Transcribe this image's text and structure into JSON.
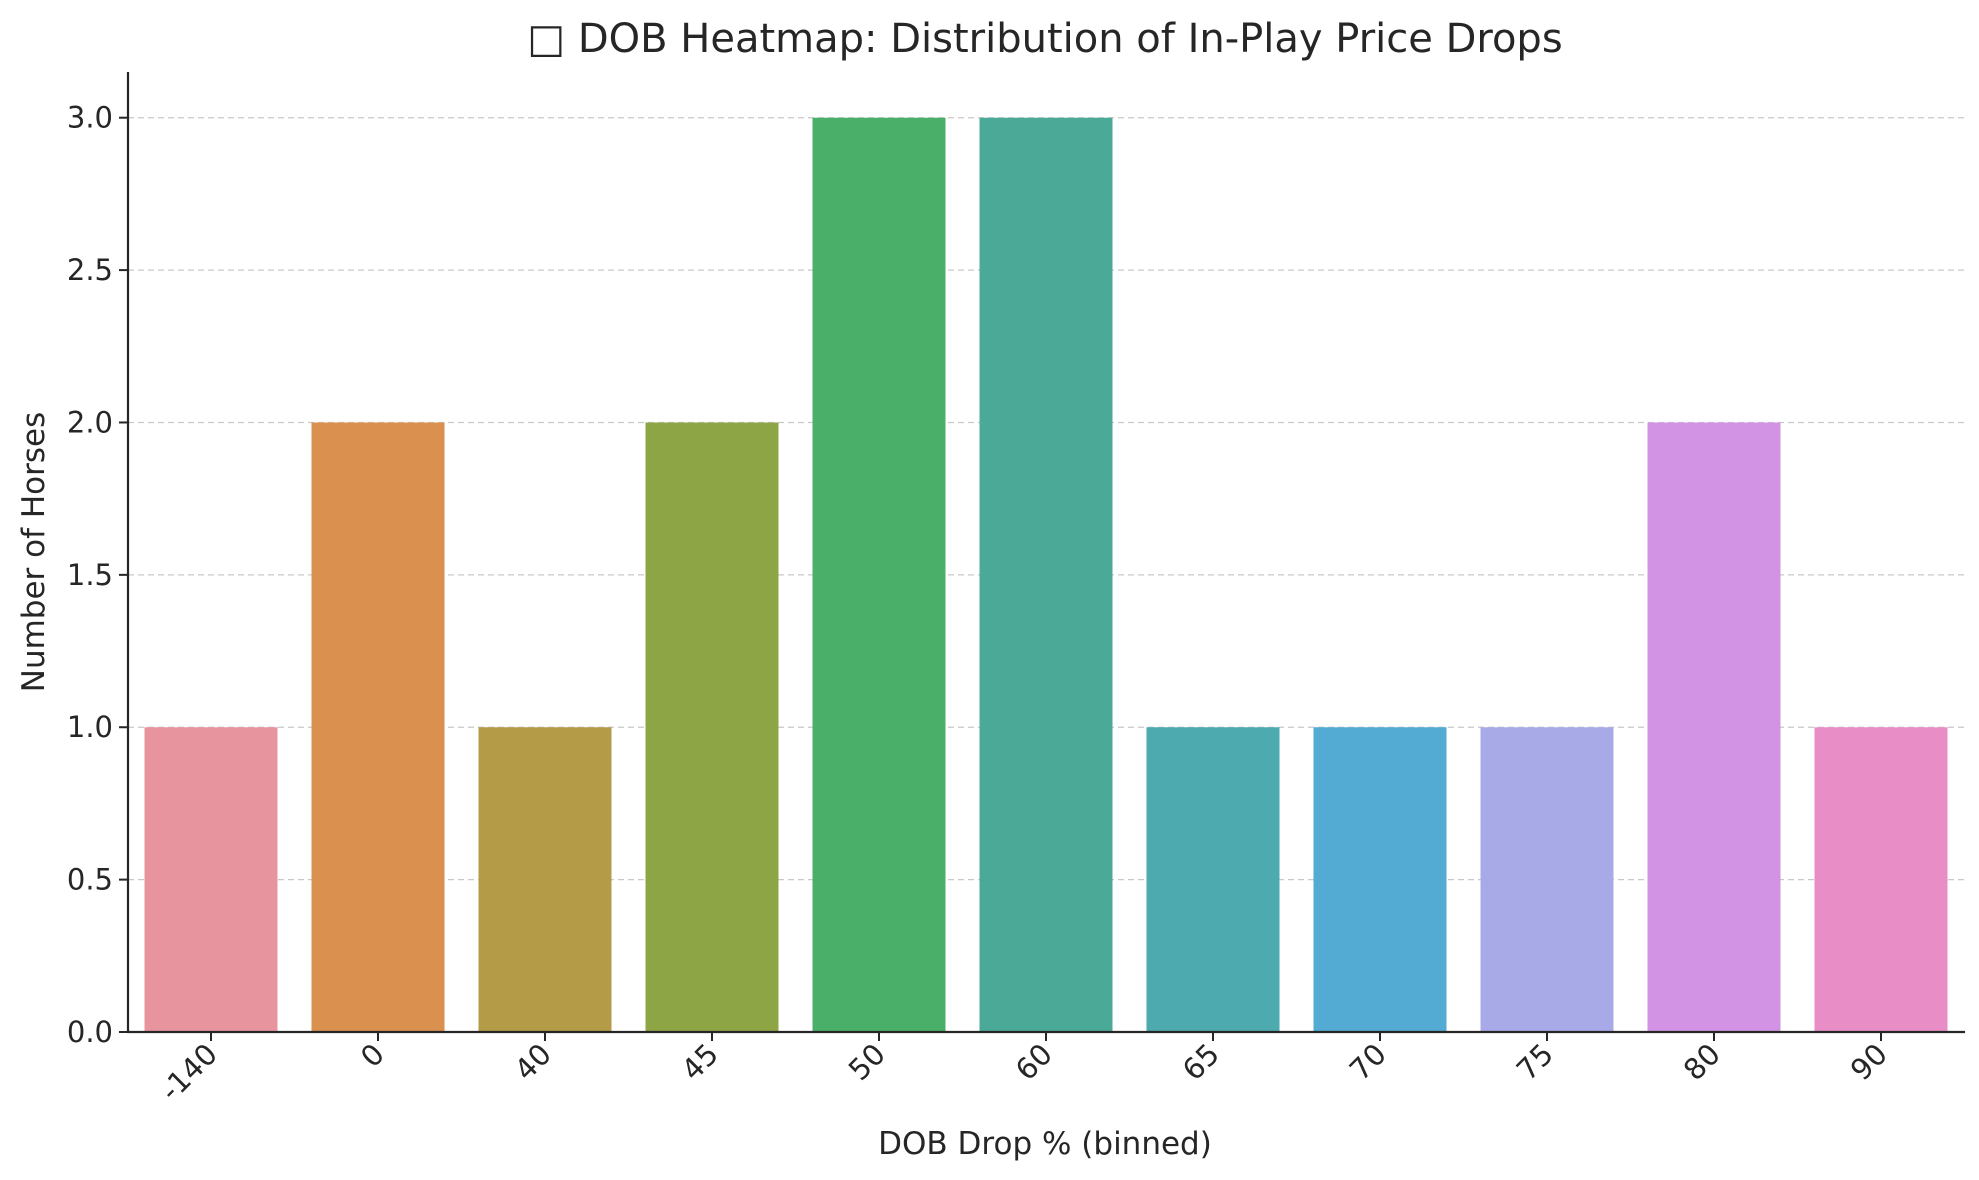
{
  "chart_data": {
    "type": "bar",
    "title": "□ DOB Heatmap: Distribution of In-Play Price Drops",
    "xlabel": "DOB Drop % (binned)",
    "ylabel": "Number of Horses",
    "categories": [
      "-140",
      "0",
      "40",
      "45",
      "50",
      "60",
      "65",
      "70",
      "75",
      "80",
      "90"
    ],
    "values": [
      1,
      2,
      1,
      2,
      3,
      3,
      1,
      1,
      1,
      2,
      1
    ],
    "colors": [
      "#e8949e",
      "#da914f",
      "#b39b48",
      "#8ea546",
      "#4aaf68",
      "#4aaa97",
      "#4daaae",
      "#53aad3",
      "#a8aae8",
      "#d393e5",
      "#e88dc6"
    ],
    "ylim": [
      0,
      3.15
    ],
    "yticks": [
      "0.0",
      "0.5",
      "1.0",
      "1.5",
      "2.0",
      "2.5",
      "3.0"
    ],
    "grid": true,
    "grid_axis": "y"
  }
}
